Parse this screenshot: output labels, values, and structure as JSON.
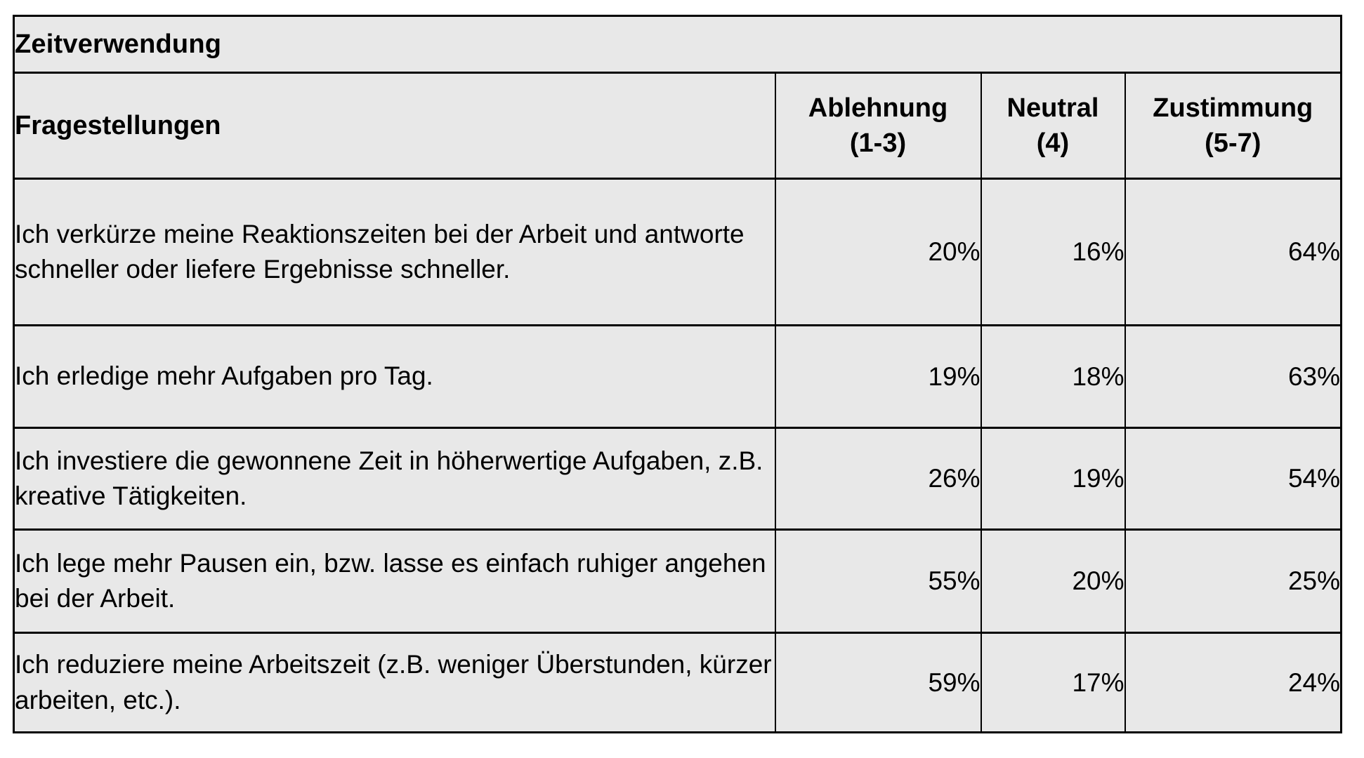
{
  "colors": {
    "cell_background": "#e8e8e8",
    "border": "#000000",
    "page_background": "#ffffff",
    "text": "#000000"
  },
  "table": {
    "title": "Zeitverwendung",
    "question_header": "Fragestellungen",
    "columns": [
      {
        "line1": "Ablehnung",
        "line2": "(1-3)"
      },
      {
        "line1": "Neutral",
        "line2": "(4)"
      },
      {
        "line1": "Zustimmung",
        "line2": "(5-7)"
      }
    ],
    "rows": [
      {
        "question": "Ich verkürze meine Reaktionszeiten bei der Arbeit und antworte schneller oder liefere Ergebnisse schneller.",
        "ablehnung": "20%",
        "neutral": "16%",
        "zustimmung": "64%"
      },
      {
        "question": "Ich erledige mehr Aufgaben pro Tag.",
        "ablehnung": "19%",
        "neutral": "18%",
        "zustimmung": "63%"
      },
      {
        "question": "Ich investiere die gewonnene Zeit in höherwertige Aufgaben, z.B. kreative Tätigkeiten.",
        "ablehnung": "26%",
        "neutral": "19%",
        "zustimmung": "54%"
      },
      {
        "question": "Ich lege mehr Pausen ein, bzw. lasse es einfach ruhiger angehen bei der Arbeit.",
        "ablehnung": "55%",
        "neutral": "20%",
        "zustimmung": "25%"
      },
      {
        "question": "Ich reduziere meine Arbeitszeit (z.B. weniger Überstunden, kürzer arbeiten, etc.).",
        "ablehnung": "59%",
        "neutral": "17%",
        "zustimmung": "24%"
      }
    ]
  },
  "chart_data": {
    "type": "table",
    "title": "Zeitverwendung",
    "columns": [
      "Fragestellungen",
      "Ablehnung (1-3)",
      "Neutral (4)",
      "Zustimmung (5-7)"
    ],
    "rows": [
      [
        "Ich verkürze meine Reaktionszeiten bei der Arbeit und antworte schneller oder liefere Ergebnisse schneller.",
        "20%",
        "16%",
        "64%"
      ],
      [
        "Ich erledige mehr Aufgaben pro Tag.",
        "19%",
        "18%",
        "63%"
      ],
      [
        "Ich investiere die gewonnene Zeit in höherwertige Aufgaben, z.B. kreative Tätigkeiten.",
        "26%",
        "19%",
        "54%"
      ],
      [
        "Ich lege mehr Pausen ein, bzw. lasse es einfach ruhiger angehen bei der Arbeit.",
        "55%",
        "20%",
        "25%"
      ],
      [
        "Ich reduziere meine Arbeitszeit (z.B. weniger Überstunden, kürzer arbeiten, etc.).",
        "59%",
        "17%",
        "24%"
      ]
    ],
    "values_unit": "percent",
    "series": [
      {
        "name": "Ablehnung (1-3)",
        "values": [
          20,
          19,
          26,
          55,
          59
        ]
      },
      {
        "name": "Neutral (4)",
        "values": [
          16,
          18,
          19,
          20,
          17
        ]
      },
      {
        "name": "Zustimmung (5-7)",
        "values": [
          64,
          63,
          54,
          25,
          24
        ]
      }
    ]
  }
}
